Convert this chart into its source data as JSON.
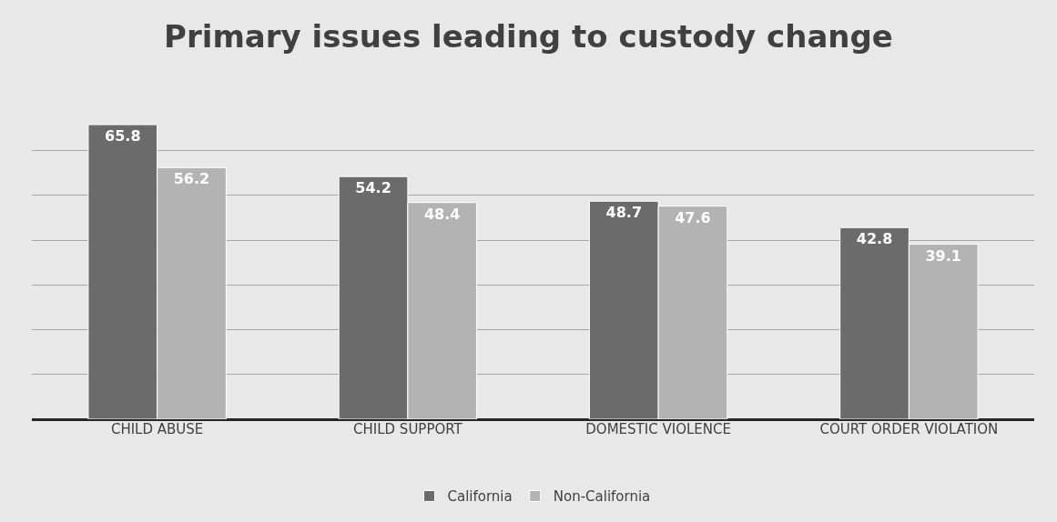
{
  "chart_data": {
    "type": "bar",
    "title": "Primary issues leading to custody change",
    "categories": [
      "CHILD ABUSE",
      "CHILD SUPPORT",
      "DOMESTIC VIOLENCE",
      "COURT ORDER VIOLATION"
    ],
    "series": [
      {
        "name": "California",
        "color": "#6b6b6b",
        "values": [
          65.8,
          54.2,
          48.7,
          42.8
        ]
      },
      {
        "name": "Non-California",
        "color": "#b3b3b3",
        "values": [
          56.2,
          48.4,
          47.6,
          39.1
        ]
      }
    ],
    "data_labels": true,
    "tick_labels": "x",
    "grid": "y",
    "legend": "bottom"
  }
}
